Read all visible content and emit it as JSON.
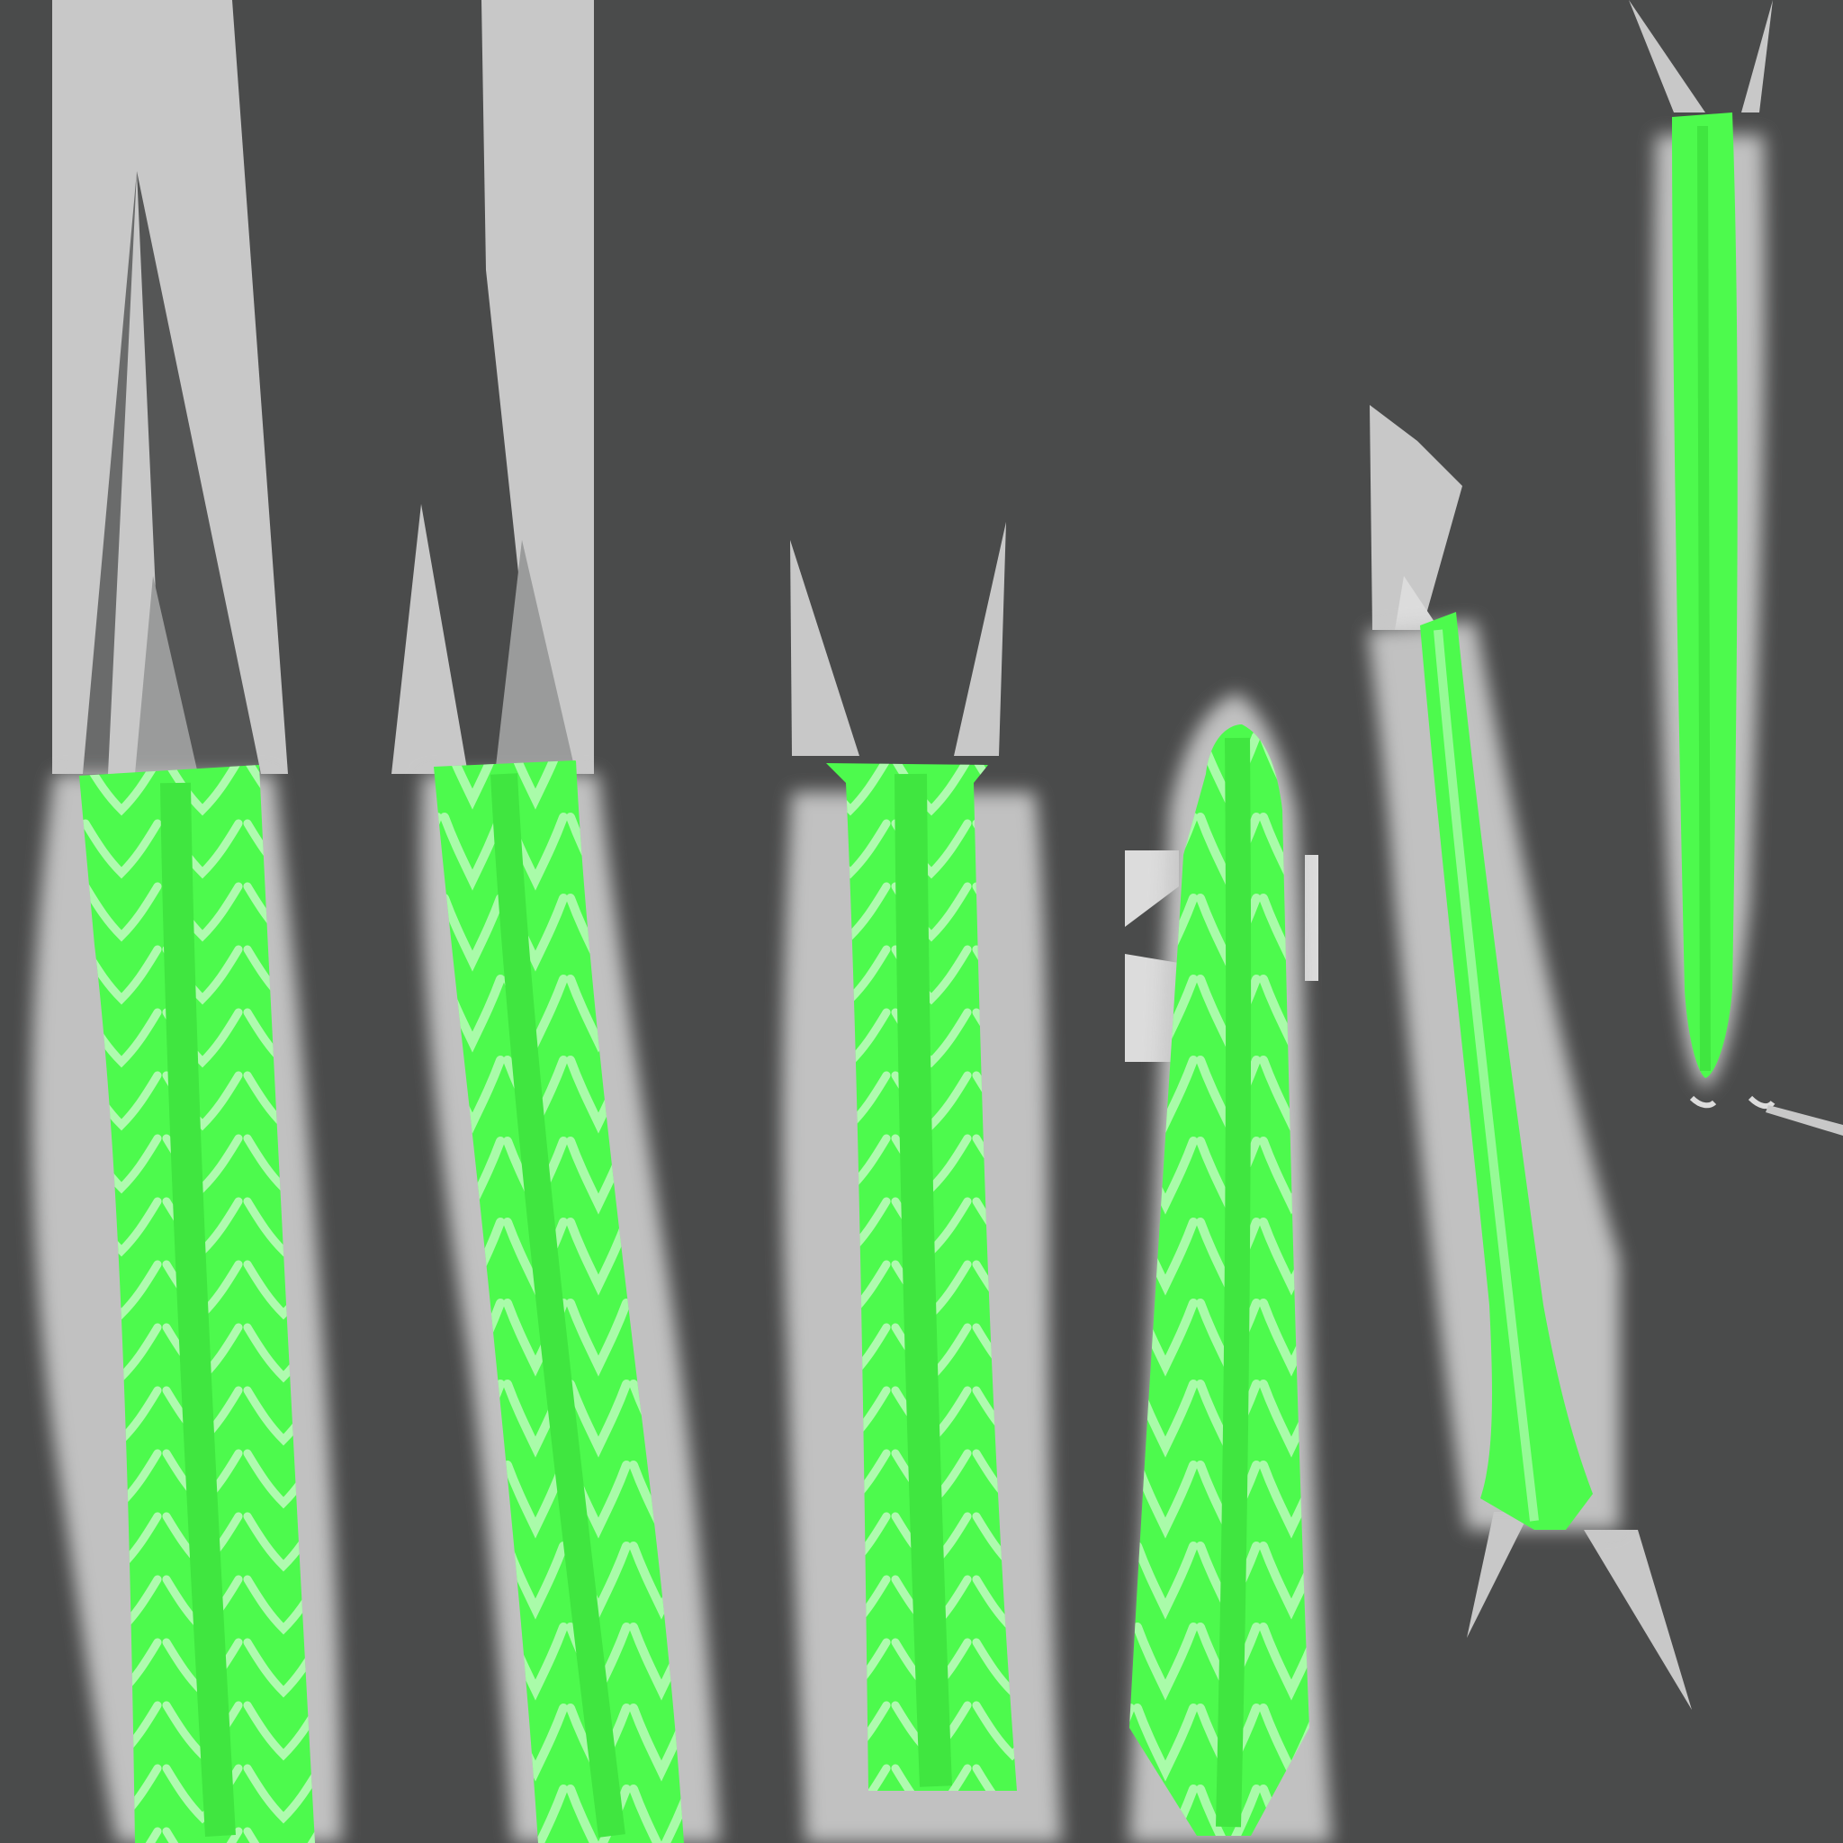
{
  "texture": {
    "colors": {
      "background": "#4a4b4b",
      "padding_gray": "#c8c8c8",
      "padding_light": "#dcdcdc",
      "glow_green": "#4dfa4d",
      "pale_green": "#c8fac8",
      "dark_mark": "#3a3d3a"
    },
    "islands": [
      {
        "kind": "segmented-spine"
      },
      {
        "kind": "segmented-spine"
      },
      {
        "kind": "segmented-spine"
      },
      {
        "kind": "segmented-spine-tapered"
      },
      {
        "kind": "tilted-strip"
      },
      {
        "kind": "thin-strip"
      }
    ]
  }
}
